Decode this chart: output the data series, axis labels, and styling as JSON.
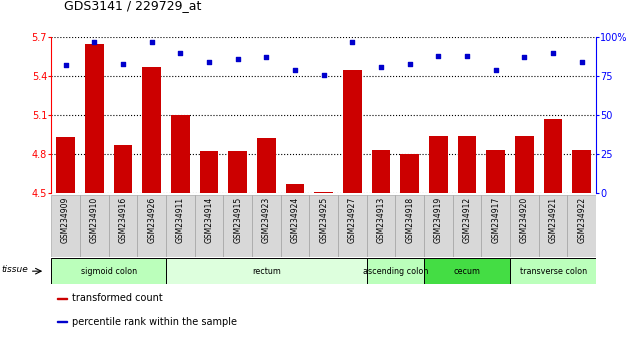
{
  "title": "GDS3141 / 229729_at",
  "samples": [
    "GSM234909",
    "GSM234910",
    "GSM234916",
    "GSM234926",
    "GSM234911",
    "GSM234914",
    "GSM234915",
    "GSM234923",
    "GSM234924",
    "GSM234925",
    "GSM234927",
    "GSM234913",
    "GSM234918",
    "GSM234919",
    "GSM234912",
    "GSM234917",
    "GSM234920",
    "GSM234921",
    "GSM234922"
  ],
  "bar_values": [
    4.93,
    5.65,
    4.87,
    5.47,
    5.1,
    4.82,
    4.82,
    4.92,
    4.57,
    4.51,
    5.45,
    4.83,
    4.8,
    4.94,
    4.94,
    4.83,
    4.94,
    5.07,
    4.83
  ],
  "percentile_values": [
    82,
    97,
    83,
    97,
    90,
    84,
    86,
    87,
    79,
    76,
    97,
    81,
    83,
    88,
    88,
    79,
    87,
    90,
    84
  ],
  "ylim_left": [
    4.5,
    5.7
  ],
  "ylim_right": [
    0,
    100
  ],
  "yticks_left": [
    4.5,
    4.8,
    5.1,
    5.4,
    5.7
  ],
  "yticks_right": [
    0,
    25,
    50,
    75,
    100
  ],
  "ytick_labels_right": [
    "0",
    "25",
    "50",
    "75",
    "100%"
  ],
  "bar_color": "#cc0000",
  "dot_color": "#0000cc",
  "bar_width": 0.65,
  "tissue_groups": [
    {
      "label": "sigmoid colon",
      "start": 0,
      "end": 3,
      "color": "#bbffbb"
    },
    {
      "label": "rectum",
      "start": 4,
      "end": 10,
      "color": "#ddffdd"
    },
    {
      "label": "ascending colon",
      "start": 11,
      "end": 12,
      "color": "#bbffbb"
    },
    {
      "label": "cecum",
      "start": 13,
      "end": 15,
      "color": "#44dd44"
    },
    {
      "label": "transverse colon",
      "start": 16,
      "end": 18,
      "color": "#bbffbb"
    }
  ],
  "legend_items": [
    {
      "label": "transformed count",
      "color": "#cc0000"
    },
    {
      "label": "percentile rank within the sample",
      "color": "#0000cc"
    }
  ],
  "bg_color": "#ffffff",
  "tick_fontsize": 7,
  "label_fontsize": 6,
  "title_fontsize": 9
}
